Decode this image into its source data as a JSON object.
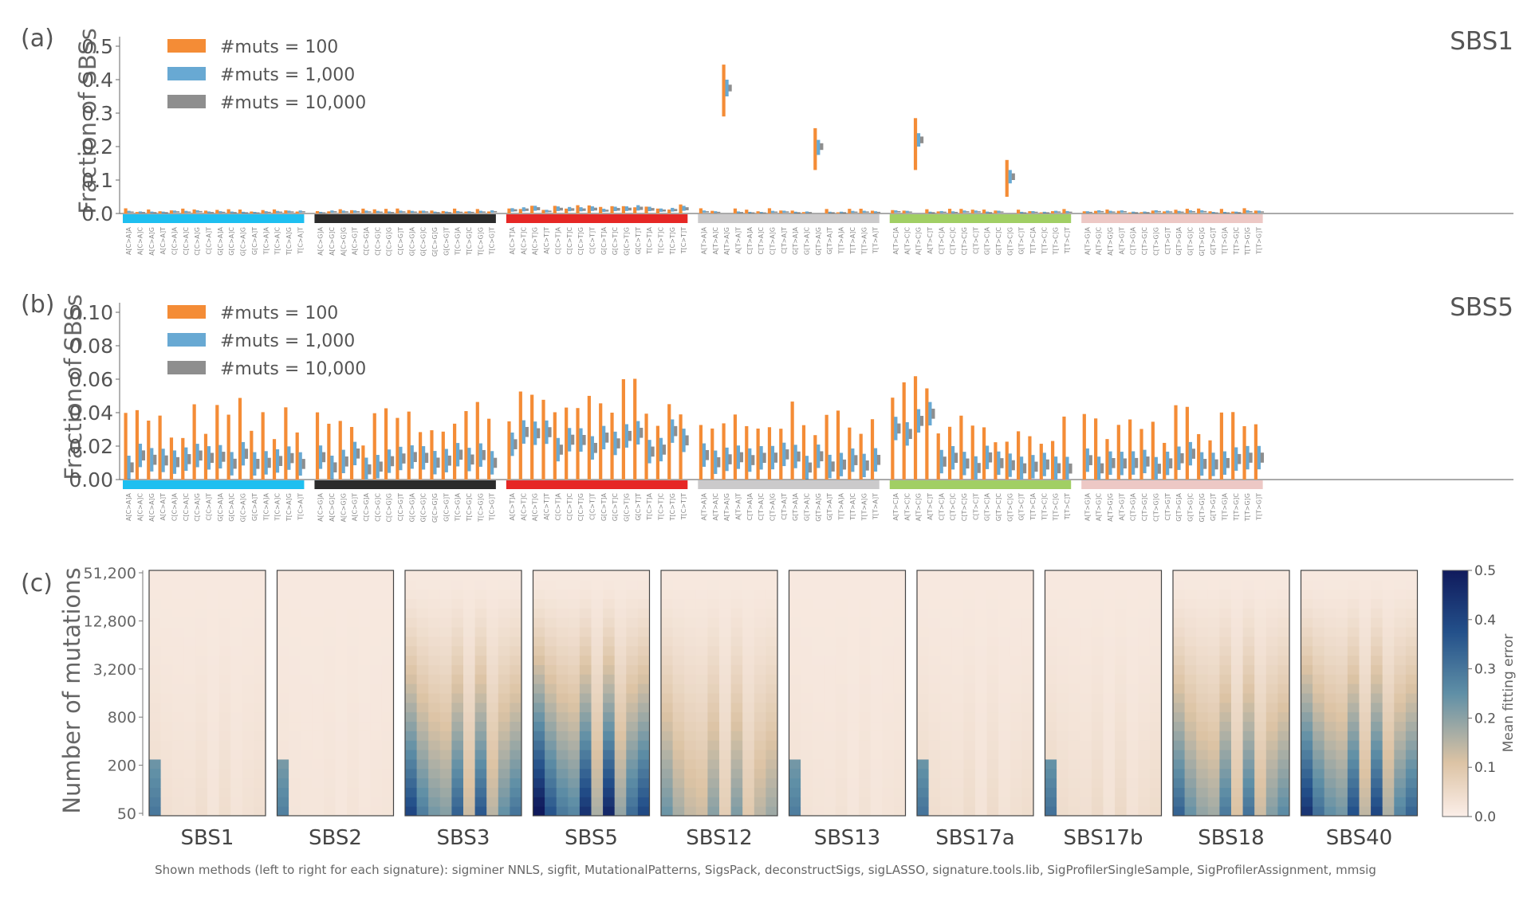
{
  "chart_data": [
    {
      "type": "bar",
      "panel": "(a)",
      "signature": "SBS1",
      "ylabel": "Fraction of SBSs",
      "ylim": [
        0,
        0.5
      ],
      "yticks": [
        "0.0",
        "0.1",
        "0.2",
        "0.3",
        "0.4",
        "0.5"
      ],
      "legend": [
        "#muts = 100",
        "#muts = 1,000",
        "#muts = 10,000"
      ],
      "legend_position": "top-left",
      "peaks": [
        {
          "index": 50,
          "values": [
            0.445,
            0.39,
            0.375
          ],
          "ranges": [
            [
              0.29,
              0.445
            ],
            [
              0.35,
              0.4
            ],
            [
              0.365,
              0.385
            ]
          ]
        },
        {
          "index": 58,
          "values": [
            0.255,
            0.22,
            0.2
          ],
          "ranges": [
            [
              0.13,
              0.255
            ],
            [
              0.175,
              0.22
            ],
            [
              0.19,
              0.21
            ]
          ]
        },
        {
          "index": 66,
          "values": [
            0.285,
            0.24,
            0.22
          ],
          "ranges": [
            [
              0.13,
              0.285
            ],
            [
              0.2,
              0.24
            ],
            [
              0.21,
              0.23
            ]
          ]
        },
        {
          "index": 74,
          "values": [
            0.16,
            0.13,
            0.11
          ],
          "ranges": [
            [
              0.05,
              0.16
            ],
            [
              0.09,
              0.13
            ],
            [
              0.1,
              0.12
            ]
          ]
        }
      ]
    },
    {
      "type": "bar",
      "panel": "(b)",
      "signature": "SBS5",
      "ylabel": "Fraction of SBSs",
      "ylim": [
        0,
        0.1
      ],
      "yticks": [
        "0.00",
        "0.02",
        "0.04",
        "0.06",
        "0.08",
        "0.10"
      ],
      "legend": [
        "#muts = 100",
        "#muts = 1,000",
        "#muts = 10,000"
      ],
      "legend_position": "top-left"
    },
    {
      "type": "heatmap",
      "panel": "(c)",
      "ylabel": "Number of mutations",
      "yticks": [
        "50",
        "200",
        "800",
        "3,200",
        "12,800",
        "51,200"
      ],
      "signatures": [
        "SBS1",
        "SBS2",
        "SBS3",
        "SBS5",
        "SBS12",
        "SBS13",
        "SBS17a",
        "SBS17b",
        "SBS18",
        "SBS40"
      ],
      "methods_count": 10,
      "colorbar_title": "Mean fitting error",
      "colorbar_range": [
        0,
        0.5
      ],
      "colorbar_ticks": [
        "0.0",
        "0.1",
        "0.2",
        "0.3",
        "0.4",
        "0.5"
      ],
      "severity": [
        0.05,
        0.02,
        0.38,
        0.5,
        0.22,
        0.03,
        0.06,
        0.07,
        0.32,
        0.42
      ]
    }
  ],
  "category_groups": [
    {
      "name": "C>A",
      "color": "#1ebff0"
    },
    {
      "name": "C>G",
      "color": "#2b2b2b"
    },
    {
      "name": "C>T",
      "color": "#e62725"
    },
    {
      "name": "T>A",
      "color": "#cbcacb"
    },
    {
      "name": "T>C",
      "color": "#a1cf64"
    },
    {
      "name": "T>G",
      "color": "#edc8c5"
    }
  ],
  "series_colors": [
    "#f48c36",
    "#68a9d3",
    "#8e8e8e"
  ],
  "heatmap_colors": {
    "low": "#fbeee8",
    "mid": "#dcc3a4",
    "midhigh": "#5f8fa6",
    "high": "#101a5c"
  },
  "footnote": "Shown methods (left to right for each signature): sigminer NNLS, sigfit, MutationalPatterns, SigsPack, deconstructSigs, sigLASSO, signature.tools.lib, SigProfilerSingleSample, SigProfilerAssignment, mmsig"
}
